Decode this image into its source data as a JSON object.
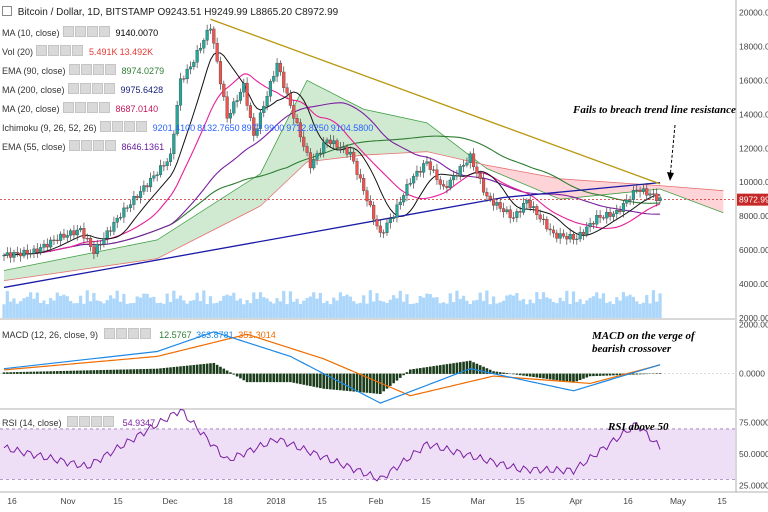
{
  "header": {
    "title": "Bitcoin / Dollar, 1D, BITSTAMP",
    "ohlc": [
      "O9243.51",
      "H9249.99",
      "L8865.20",
      "C8972.99"
    ]
  },
  "indicators": [
    {
      "label": "MA (10, close)",
      "values": [
        "9140.0070"
      ],
      "color": "#000000"
    },
    {
      "label": "Vol (20)",
      "values": [
        "5.491K",
        "13.492K"
      ],
      "color": "#e53935"
    },
    {
      "label": "EMA (90, close)",
      "values": [
        "8974.0279"
      ],
      "color": "#2e7d32"
    },
    {
      "label": "MA (200, close)",
      "values": [
        "9975.6428"
      ],
      "color": "#1a237e"
    },
    {
      "label": "MA (20, close)",
      "values": [
        "8687.0140"
      ],
      "color": "#c2185b"
    },
    {
      "label": "Ichimoku (9, 26, 52, 26)",
      "values": [
        "9201.4100",
        "8132.7650",
        "8972.9900",
        "9712.8250",
        "9104.5800"
      ],
      "color": "#2962ff"
    },
    {
      "label": "EMA (55, close)",
      "values": [
        "8646.1361"
      ],
      "color": "#6a1b9a"
    }
  ],
  "macd_legend": {
    "label": "MACD (12, 26, close, 9)",
    "values": [
      "12.5767",
      "363.8781",
      "351.3014"
    ]
  },
  "rsi_legend": {
    "label": "RSI (14, close)",
    "values": [
      "54.9347"
    ]
  },
  "annotations": {
    "trendline": "Fails to breach trend line resistance",
    "macd_line1": "MACD on the verge of",
    "macd_line2": "bearish crossover",
    "rsi": "RSI above 50"
  },
  "price_axis": {
    "ticks": [
      "20000.00",
      "18000.00",
      "16000.00",
      "14000.00",
      "12000.00",
      "10000.00",
      "8000.00",
      "6000.00",
      "4000.00",
      "2000.00"
    ],
    "current": "8972.99"
  },
  "macd_axis": {
    "ticks": [
      "2000.0000",
      "0.0000"
    ]
  },
  "rsi_axis": {
    "ticks": [
      "75.0000",
      "50.0000",
      "25.0000"
    ]
  },
  "time_axis": [
    "16",
    "Nov",
    "15",
    "Dec",
    "18",
    "2018",
    "15",
    "Feb",
    "15",
    "Mar",
    "15",
    "Apr",
    "16",
    "May",
    "15"
  ],
  "chart_data": {
    "type": "candlestick",
    "symbol": "BTCUSD",
    "interval": "1D",
    "ylim": [
      2000,
      20500
    ],
    "close_path": [
      [
        "2017-10-16",
        5700
      ],
      [
        "2017-10-25",
        5900
      ],
      [
        "2017-11-01",
        6700
      ],
      [
        "2017-11-08",
        7200
      ],
      [
        "2017-11-12",
        5900
      ],
      [
        "2017-11-20",
        8100
      ],
      [
        "2017-11-28",
        9900
      ],
      [
        "2017-12-05",
        11500
      ],
      [
        "2017-12-08",
        16000
      ],
      [
        "2017-12-11",
        16800
      ],
      [
        "2017-12-17",
        19200
      ],
      [
        "2017-12-22",
        13800
      ],
      [
        "2017-12-27",
        15700
      ],
      [
        "2017-12-30",
        12700
      ],
      [
        "2018-01-06",
        17000
      ],
      [
        "2018-01-10",
        14500
      ],
      [
        "2018-01-16",
        11000
      ],
      [
        "2018-01-21",
        12500
      ],
      [
        "2018-01-28",
        11700
      ],
      [
        "2018-02-02",
        9000
      ],
      [
        "2018-02-06",
        6900
      ],
      [
        "2018-02-10",
        8100
      ],
      [
        "2018-02-15",
        10100
      ],
      [
        "2018-02-20",
        11200
      ],
      [
        "2018-02-25",
        9600
      ],
      [
        "2018-03-05",
        11500
      ],
      [
        "2018-03-10",
        9100
      ],
      [
        "2018-03-18",
        7900
      ],
      [
        "2018-03-22",
        8900
      ],
      [
        "2018-03-30",
        6900
      ],
      [
        "2018-04-06",
        6700
      ],
      [
        "2018-04-12",
        7900
      ],
      [
        "2018-04-18",
        8200
      ],
      [
        "2018-04-24",
        9600
      ],
      [
        "2018-04-28",
        9300
      ],
      [
        "2018-05-01",
        8973
      ]
    ],
    "trendline_resistance": [
      [
        "2017-12-17",
        19600
      ],
      [
        "2018-05-01",
        9900
      ]
    ],
    "ma200_line": [
      [
        "2017-10-16",
        3800
      ],
      [
        "2018-01-15",
        7000
      ],
      [
        "2018-03-15",
        9100
      ],
      [
        "2018-05-01",
        9976
      ]
    ],
    "ichimoku_cloud": {
      "span_a": [
        [
          "2017-10-16",
          4800
        ],
        [
          "2017-12-01",
          6600
        ],
        [
          "2018-01-01",
          10500
        ],
        [
          "2018-01-15",
          16000
        ],
        [
          "2018-02-01",
          14300
        ],
        [
          "2018-02-20",
          13500
        ],
        [
          "2018-03-10",
          10800
        ],
        [
          "2018-04-01",
          9000
        ],
        [
          "2018-05-01",
          9600
        ],
        [
          "2018-05-20",
          8200
        ]
      ],
      "span_b": [
        [
          "2017-10-16",
          4200
        ],
        [
          "2017-12-01",
          5500
        ],
        [
          "2018-01-01",
          8600
        ],
        [
          "2018-01-15",
          11200
        ],
        [
          "2018-02-01",
          11600
        ],
        [
          "2018-02-20",
          11800
        ],
        [
          "2018-03-10",
          11000
        ],
        [
          "2018-04-01",
          10200
        ],
        [
          "2018-05-01",
          9800
        ],
        [
          "2018-05-20",
          9500
        ]
      ]
    },
    "macd": {
      "ylim": [
        -1400,
        2100
      ],
      "macd_line": [
        [
          "2017-10-16",
          200
        ],
        [
          "2017-12-01",
          900
        ],
        [
          "2017-12-18",
          1700
        ],
        [
          "2018-01-10",
          700
        ],
        [
          "2018-02-06",
          -1200
        ],
        [
          "2018-03-05",
          200
        ],
        [
          "2018-04-05",
          -700
        ],
        [
          "2018-05-01",
          364
        ]
      ],
      "signal_line": [
        [
          "2017-10-16",
          150
        ],
        [
          "2017-12-01",
          700
        ],
        [
          "2017-12-28",
          1600
        ],
        [
          "2018-01-20",
          600
        ],
        [
          "2018-02-15",
          -900
        ],
        [
          "2018-03-12",
          -100
        ],
        [
          "2018-04-10",
          -400
        ],
        [
          "2018-05-01",
          351
        ]
      ]
    },
    "rsi": {
      "ylim": [
        20,
        85
      ],
      "bands": [
        30,
        70
      ],
      "path": [
        [
          "2017-10-16",
          55
        ],
        [
          "2017-11-10",
          40
        ],
        [
          "2017-12-08",
          85
        ],
        [
          "2017-12-22",
          45
        ],
        [
          "2018-01-06",
          62
        ],
        [
          "2018-02-06",
          30
        ],
        [
          "2018-02-20",
          58
        ],
        [
          "2018-03-20",
          38
        ],
        [
          "2018-04-05",
          37
        ],
        [
          "2018-04-24",
          74
        ],
        [
          "2018-05-01",
          55
        ]
      ]
    }
  }
}
